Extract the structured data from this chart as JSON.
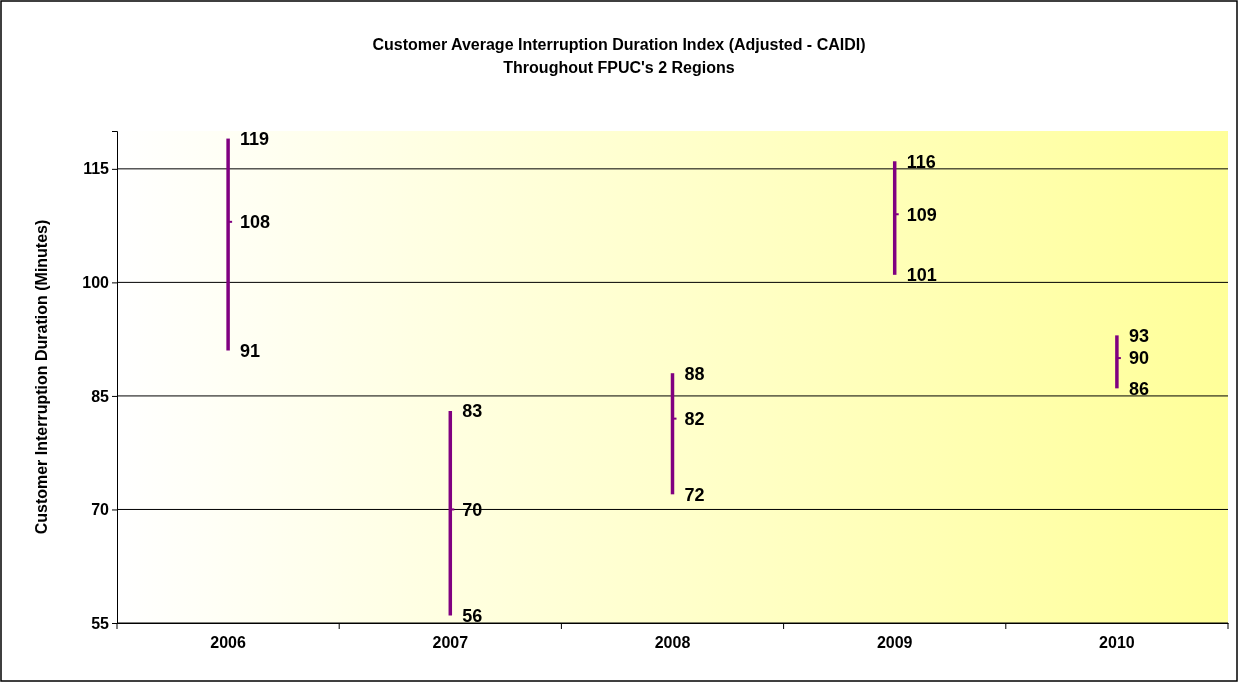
{
  "chart_data": {
    "type": "scatter",
    "title": "Customer Average Interruption Duration Index (Adjusted - CAIDI)",
    "subtitle": "Throughout FPUC's 2 Regions",
    "ylabel": "Customer Interruption Duration (Minutes)",
    "categories": [
      "2006",
      "2007",
      "2008",
      "2009",
      "2010"
    ],
    "series": [
      {
        "color": "#800080",
        "values": [
          108,
          70,
          82,
          109,
          90
        ],
        "errors": [
          [
            91,
            119
          ],
          [
            56,
            83
          ],
          [
            72,
            88
          ],
          [
            101,
            116
          ],
          [
            86,
            93
          ]
        ]
      }
    ],
    "marker": "square",
    "data_labels": true,
    "grid": "y",
    "ylim": [
      55,
      120
    ],
    "yticks": [
      55,
      70,
      85,
      100,
      115
    ],
    "annotations": [
      {
        "text": "119",
        "x": "2006",
        "y": 119
      },
      {
        "text": "91",
        "x": "2006",
        "y": 91
      },
      {
        "text": "83",
        "x": "2007",
        "y": 83
      },
      {
        "text": "56",
        "x": "2007",
        "y": 56
      },
      {
        "text": "88",
        "x": "2008",
        "y": 88
      },
      {
        "text": "72",
        "x": "2008",
        "y": 72
      },
      {
        "text": "116",
        "x": "2009",
        "y": 116
      },
      {
        "text": "101",
        "x": "2009",
        "y": 101
      },
      {
        "text": "93",
        "x": "2010",
        "y": 93
      },
      {
        "text": "86",
        "x": "2010",
        "y": 86
      }
    ]
  }
}
